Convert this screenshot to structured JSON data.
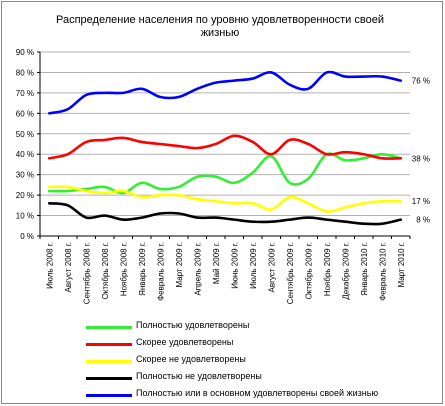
{
  "chart_data": {
    "type": "line",
    "title": "Распределение населения по уровню удовлетворенности своей жизнью",
    "categories": [
      "Июль 2008 г.",
      "Август 2008 г.",
      "Сентябрь 2008 г.",
      "Октябрь 2008 г.",
      "Ноябрь 2008 г.",
      "Январь 2009 г.",
      "Февраль 2009 г.",
      "Март 2009 г.",
      "Апрель 2009 г.",
      "Май 2009 г.",
      "Июнь 2009 г.",
      "Июль 2009 г.",
      "Август 2009 г.",
      "Сентябрь 2009 г.",
      "Октябрь 2009 г.",
      "Ноябрь 2009 г.",
      "Декабрь 2009 г.",
      "Январь 2010 г.",
      "Февраль 2010 г.",
      "Март 2010 г."
    ],
    "y_ticks": [
      "0 %",
      "10 %",
      "20 %",
      "30 %",
      "40 %",
      "50 %",
      "60 %",
      "70 %",
      "80 %",
      "90 %"
    ],
    "ylim": [
      0,
      90
    ],
    "grid": true,
    "legend_position": "bottom",
    "series": [
      {
        "name": "Полностью удовлетворены",
        "color": "#33ee33",
        "values": [
          22,
          22,
          23,
          24,
          21,
          26,
          23,
          24,
          29,
          29,
          26,
          31,
          39,
          26,
          28,
          40,
          37,
          38,
          40,
          38
        ]
      },
      {
        "name": "Скорее удовлетворены",
        "color": "#ff0000",
        "values": [
          38,
          40,
          46,
          47,
          48,
          46,
          45,
          44,
          43,
          45,
          49,
          46,
          40,
          47,
          45,
          40,
          41,
          40,
          38,
          38
        ]
      },
      {
        "name": "Скорее не удовлетворены",
        "color": "#ffff00",
        "values": [
          24,
          24,
          22,
          21,
          22,
          19,
          20,
          20,
          18,
          17,
          16,
          16,
          13,
          19,
          16,
          12,
          14,
          16,
          17,
          17
        ]
      },
      {
        "name": "Полностью не удовлетворены",
        "color": "#000000",
        "values": [
          16,
          15,
          9,
          10,
          8,
          9,
          11,
          11,
          9,
          9,
          8,
          7,
          7,
          8,
          9,
          8,
          7,
          6,
          6,
          8
        ]
      },
      {
        "name": "Полностью или в основном удовлетворены своей жизнью",
        "color": "#0000ff",
        "values": [
          60,
          62,
          69,
          70,
          70,
          72,
          68,
          68,
          72,
          75,
          76,
          77,
          80,
          74,
          72,
          80,
          78,
          78,
          78,
          76
        ]
      }
    ],
    "end_labels": [
      {
        "text": "76 %",
        "value": 76
      },
      {
        "text": "38 %",
        "value": 38
      },
      {
        "text": "17 %",
        "value": 17
      },
      {
        "text": "8 %",
        "value": 8
      }
    ]
  }
}
